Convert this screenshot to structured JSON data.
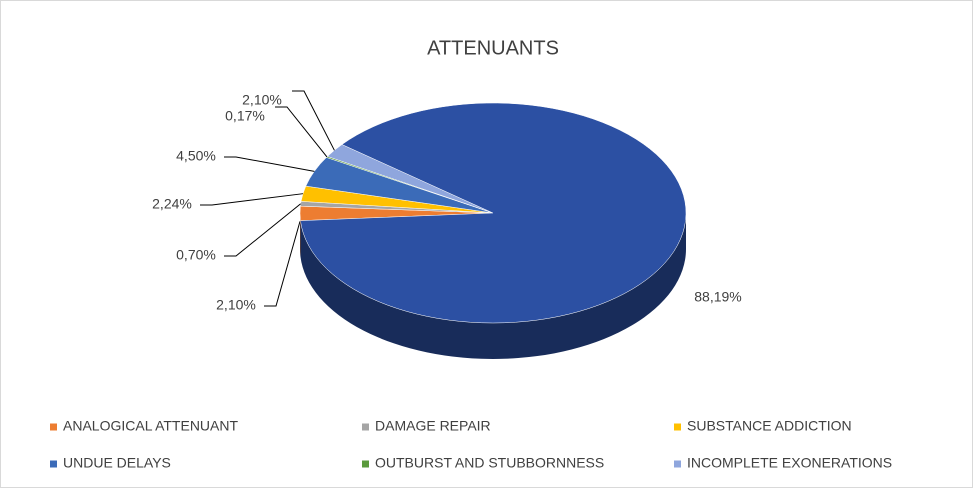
{
  "chart_data": {
    "type": "pie3d",
    "title": "ATTENUANTS",
    "categories": [
      "ANALOGICAL ATTENUANT",
      "DAMAGE REPAIR",
      "SUBSTANCE ADDICTION",
      "UNDUE DELAYS",
      "OUTBURST AND STUBBORNNESS",
      "INCOMPLETE EXONERATIONS",
      null
    ],
    "values": [
      2.1,
      0.7,
      2.24,
      4.5,
      0.17,
      2.1,
      88.19
    ],
    "value_labels": [
      "2,10%",
      "0,70%",
      "2,24%",
      "4,50%",
      "0,17%",
      "2,10%",
      "88,19%"
    ],
    "colors": [
      "#ed7d31",
      "#a5a5a5",
      "#ffc000",
      "#3b6bb8",
      "#5a9a3c",
      "#8fa6dd",
      "#2c50a3"
    ],
    "legend": "bottom"
  }
}
